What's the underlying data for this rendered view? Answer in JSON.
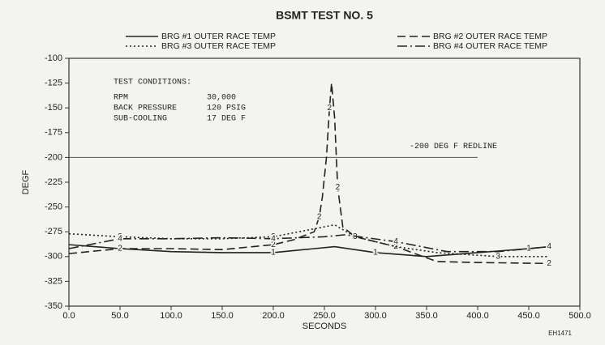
{
  "chart_data": {
    "type": "line",
    "title": "BSMT TEST NO. 5",
    "xlabel": "SECONDS",
    "ylabel": "DEGF",
    "xlim": [
      0,
      500
    ],
    "ylim": [
      -350,
      -100
    ],
    "xticks": [
      {
        "value": 0,
        "label": "0.0"
      },
      {
        "value": 50,
        "label": "50.0"
      },
      {
        "value": 100,
        "label": "100.0"
      },
      {
        "value": 150,
        "label": "150.0"
      },
      {
        "value": 200,
        "label": "200.0"
      },
      {
        "value": 250,
        "label": "250.0"
      },
      {
        "value": 300,
        "label": "300.0"
      },
      {
        "value": 350,
        "label": "350.0"
      },
      {
        "value": 400,
        "label": "400.0"
      },
      {
        "value": 450,
        "label": "450.0"
      },
      {
        "value": 500,
        "label": "500.0"
      }
    ],
    "yticks": [
      -100,
      -125,
      -150,
      -175,
      -200,
      -225,
      -250,
      -275,
      -300,
      -325,
      -350
    ],
    "series": [
      {
        "name": "BRG #1 OUTER RACE TEMP",
        "marker": "1",
        "style": "solid",
        "color": "#222222",
        "x": [
          0,
          50,
          100,
          150,
          200,
          230,
          260,
          300,
          350,
          400,
          450,
          470
        ],
        "values": [
          -288,
          -292,
          -295,
          -296,
          -296,
          -293,
          -290,
          -296,
          -300,
          -296,
          -292,
          -290
        ]
      },
      {
        "name": "BRG #2 OUTER RACE TEMP",
        "marker": "2",
        "style": "dashed",
        "color": "#222222",
        "x": [
          0,
          50,
          100,
          150,
          200,
          220,
          240,
          245,
          248,
          252,
          255,
          257,
          260,
          263,
          268,
          280,
          320,
          360,
          400,
          470
        ],
        "values": [
          -297,
          -292,
          -292,
          -293,
          -288,
          -283,
          -275,
          -260,
          -240,
          -200,
          -150,
          -125,
          -160,
          -230,
          -270,
          -280,
          -290,
          -305,
          -306,
          -307
        ]
      },
      {
        "name": "BRG #3 OUTER RACE TEMP",
        "marker": "3",
        "style": "dotted",
        "color": "#222222",
        "x": [
          0,
          50,
          100,
          150,
          200,
          240,
          260,
          280,
          320,
          360,
          420,
          470
        ],
        "values": [
          -277,
          -280,
          -282,
          -282,
          -280,
          -272,
          -268,
          -280,
          -290,
          -296,
          -300,
          -300
        ]
      },
      {
        "name": "BRG #4 OUTER RACE TEMP",
        "marker": "4",
        "style": "dashdot",
        "color": "#222222",
        "x": [
          0,
          50,
          100,
          150,
          200,
          250,
          270,
          320,
          370,
          420,
          470
        ],
        "values": [
          -292,
          -282,
          -282,
          -281,
          -282,
          -280,
          -278,
          -285,
          -295,
          -295,
          -290
        ]
      }
    ],
    "redline": {
      "value": -200,
      "xlim": [
        0,
        400
      ],
      "label": "-200 DEG F  REDLINE"
    },
    "test_conditions": {
      "title": "TEST CONDITIONS:",
      "rows": [
        [
          "RPM",
          "30,000"
        ],
        [
          "BACK PRESSURE",
          "120 PSIG"
        ],
        [
          "SUB-COOLING",
          "17 DEG F"
        ]
      ]
    },
    "figure_id": "EH1471"
  }
}
